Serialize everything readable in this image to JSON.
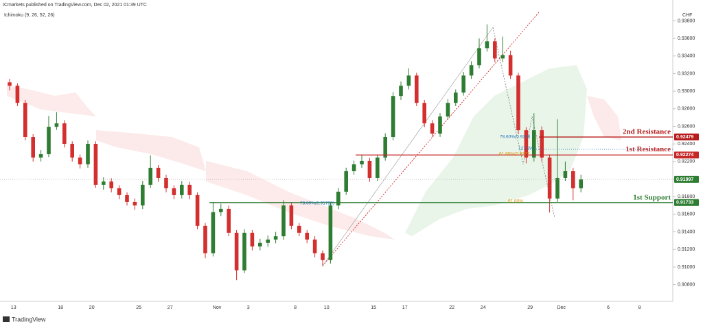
{
  "header": {
    "publisher": "ICmarkets published on TradingView.com, Dec 02, 2021 01:39 UTC",
    "indicator": "Ichimoku (9, 26, 52, 26)",
    "currency": "CHF",
    "brand": "TradingView"
  },
  "chart_data": {
    "type": "candlestick",
    "up_color": "#2e7d32",
    "down_color": "#d32f2f",
    "categories": [
      "13",
      null,
      null,
      null,
      null,
      null,
      "18",
      null,
      null,
      null,
      "20",
      null,
      null,
      null,
      null,
      null,
      "25",
      null,
      null,
      null,
      "27",
      null,
      null,
      null,
      null,
      null,
      "Nov",
      null,
      null,
      null,
      "3",
      null,
      null,
      null,
      null,
      null,
      "8",
      null,
      null,
      null,
      "10",
      null,
      null,
      null,
      null,
      null,
      "15",
      null,
      null,
      null,
      "17",
      null,
      null,
      null,
      null,
      null,
      "22",
      null,
      null,
      null,
      "24",
      null,
      null,
      null,
      null,
      null,
      "29",
      null,
      null,
      null,
      "Dec",
      null,
      null,
      null,
      null,
      null,
      "6",
      null,
      null,
      null,
      "8",
      null,
      null,
      null
    ],
    "ohlc": [
      [
        0.931,
        0.9314,
        0.9301,
        0.93062
      ],
      [
        0.93062,
        0.9309,
        0.9283,
        0.92867
      ],
      [
        0.92867,
        0.929,
        0.9244,
        0.92479
      ],
      [
        0.92479,
        0.9251,
        0.922,
        0.92245
      ],
      [
        0.92245,
        0.9233,
        0.922,
        0.92284
      ],
      [
        0.92284,
        0.9272,
        0.9225,
        0.92595
      ],
      [
        0.92595,
        0.9276,
        0.9256,
        0.92634
      ],
      [
        0.92634,
        0.9267,
        0.9236,
        0.92401
      ],
      [
        0.92401,
        0.9243,
        0.922,
        0.92245
      ],
      [
        0.92245,
        0.9228,
        0.9212,
        0.92168
      ],
      [
        0.92168,
        0.9244,
        0.9213,
        0.92401
      ],
      [
        0.92401,
        0.9243,
        0.919,
        0.91935
      ],
      [
        0.91935,
        0.9202,
        0.9188,
        0.91973
      ],
      [
        0.91973,
        0.9201,
        0.9185,
        0.91896
      ],
      [
        0.91896,
        0.9193,
        0.9177,
        0.91818
      ],
      [
        0.91818,
        0.9185,
        0.917,
        0.9174
      ],
      [
        0.9174,
        0.9178,
        0.9165,
        0.91701
      ],
      [
        0.91701,
        0.9198,
        0.9166,
        0.91935
      ],
      [
        0.91935,
        0.9227,
        0.919,
        0.92129
      ],
      [
        0.92129,
        0.9216,
        0.9197,
        0.92012
      ],
      [
        0.92012,
        0.9205,
        0.9185,
        0.91896
      ],
      [
        0.91896,
        0.9193,
        0.9177,
        0.91818
      ],
      [
        0.91818,
        0.9198,
        0.9178,
        0.91935
      ],
      [
        0.91935,
        0.9197,
        0.9177,
        0.91818
      ],
      [
        0.91818,
        0.9185,
        0.9143,
        0.91468
      ],
      [
        0.91468,
        0.915,
        0.911,
        0.91157
      ],
      [
        0.91157,
        0.9174,
        0.9112,
        0.91624
      ],
      [
        0.91624,
        0.9172,
        0.9158,
        0.91662
      ],
      [
        0.91662,
        0.917,
        0.9135,
        0.9139
      ],
      [
        0.9139,
        0.9142,
        0.9085,
        0.90963
      ],
      [
        0.90963,
        0.9143,
        0.9093,
        0.9139
      ],
      [
        0.9139,
        0.9142,
        0.9119,
        0.91235
      ],
      [
        0.91235,
        0.9132,
        0.9119,
        0.91274
      ],
      [
        0.91274,
        0.9136,
        0.9123,
        0.91313
      ],
      [
        0.91313,
        0.914,
        0.9127,
        0.9135
      ],
      [
        0.9135,
        0.9176,
        0.9131,
        0.91701
      ],
      [
        0.91701,
        0.9173,
        0.9143,
        0.91468
      ],
      [
        0.91468,
        0.915,
        0.9135,
        0.9139
      ],
      [
        0.9139,
        0.9142,
        0.9127,
        0.91313
      ],
      [
        0.91313,
        0.9135,
        0.9111,
        0.91157
      ],
      [
        0.91157,
        0.9119,
        0.9101,
        0.91079
      ],
      [
        0.91079,
        0.9174,
        0.9104,
        0.91701
      ],
      [
        0.91701,
        0.919,
        0.9166,
        0.91857
      ],
      [
        0.91857,
        0.9213,
        0.9182,
        0.9209
      ],
      [
        0.9209,
        0.9221,
        0.9205,
        0.92168
      ],
      [
        0.92168,
        0.9228,
        0.9213,
        0.92207
      ],
      [
        0.92207,
        0.9224,
        0.9197,
        0.92012
      ],
      [
        0.92012,
        0.9228,
        0.9198,
        0.92245
      ],
      [
        0.92245,
        0.9252,
        0.9221,
        0.92479
      ],
      [
        0.92479,
        0.9299,
        0.9244,
        0.92945
      ],
      [
        0.92945,
        0.9311,
        0.929,
        0.93062
      ],
      [
        0.93062,
        0.9326,
        0.9302,
        0.93178
      ],
      [
        0.93178,
        0.9321,
        0.9283,
        0.92867
      ],
      [
        0.92867,
        0.929,
        0.9259,
        0.92634
      ],
      [
        0.92634,
        0.9267,
        0.9248,
        0.92517
      ],
      [
        0.92517,
        0.9275,
        0.9248,
        0.92712
      ],
      [
        0.92712,
        0.9291,
        0.9268,
        0.92867
      ],
      [
        0.92867,
        0.9302,
        0.9283,
        0.92984
      ],
      [
        0.92984,
        0.9322,
        0.9295,
        0.93178
      ],
      [
        0.93178,
        0.9334,
        0.9314,
        0.93295
      ],
      [
        0.93295,
        0.936,
        0.9326,
        0.93489
      ],
      [
        0.93489,
        0.9376,
        0.9345,
        0.93567
      ],
      [
        0.93567,
        0.936,
        0.9333,
        0.93372
      ],
      [
        0.93372,
        0.9362,
        0.9333,
        0.93411
      ],
      [
        0.93411,
        0.9346,
        0.9314,
        0.93178
      ],
      [
        0.93178,
        0.9321,
        0.9251,
        0.92556
      ],
      [
        0.92556,
        0.9259,
        0.9218,
        0.92245
      ],
      [
        0.92245,
        0.9275,
        0.922,
        0.92556
      ],
      [
        0.92556,
        0.926,
        0.922,
        0.92245
      ],
      [
        0.92245,
        0.9228,
        0.9162,
        0.91779
      ],
      [
        0.91779,
        0.9268,
        0.9174,
        0.92012
      ],
      [
        0.92012,
        0.922,
        0.9198,
        0.9209
      ],
      [
        0.9209,
        0.9213,
        0.9176,
        0.91896
      ],
      [
        0.91896,
        0.9205,
        0.9185,
        0.91997
      ],
      null,
      null,
      null,
      null,
      null,
      null,
      null,
      null,
      null,
      null
    ],
    "ylim": [
      0.9061,
      0.9392
    ],
    "yticks": [
      {
        "value": 0.938,
        "label": "0.93800"
      },
      {
        "value": 0.936,
        "label": "0.93600"
      },
      {
        "value": 0.934,
        "label": "0.93400"
      },
      {
        "value": 0.932,
        "label": "0.93200"
      },
      {
        "value": 0.93,
        "label": "0.93000"
      },
      {
        "value": 0.928,
        "label": "0.92800"
      },
      {
        "value": 0.926,
        "label": "0.92600"
      },
      {
        "value": 0.924,
        "label": "0.92400"
      },
      {
        "value": 0.922,
        "label": "0.92200"
      },
      {
        "value": 0.92,
        "label": "0.92000"
      },
      {
        "value": 0.918,
        "label": "0.91800"
      },
      {
        "value": 0.916,
        "label": "0.91600"
      },
      {
        "value": 0.914,
        "label": "0.91400"
      },
      {
        "value": 0.912,
        "label": "0.91200"
      },
      {
        "value": 0.91,
        "label": "0.91000"
      },
      {
        "value": 0.908,
        "label": "0.90800"
      }
    ],
    "levels": [
      {
        "name": "2nd Resistance",
        "value": 0.92479,
        "label": "0.92479",
        "color": "#b71c1c"
      },
      {
        "name": "1st Resistance",
        "value": 0.92274,
        "label": "0.92274",
        "color": "#c62828"
      },
      {
        "value": 0.91997,
        "label": "0.91997",
        "color": "#2e7d32"
      },
      {
        "name": "1st Support",
        "value": 0.91733,
        "label": "0.91733",
        "color": "#2e7d32"
      }
    ],
    "fib_labels": [
      {
        "text": "78.60%(0.9248",
        "color": "#1e6fb5"
      },
      {
        "text": "127.2%",
        "color": "#1e6fb5"
      },
      {
        "text": "61.80%(0.9227",
        "color": "#d89000"
      },
      {
        "text": "78.60%(0.91733)",
        "color": "#1e6fb5"
      },
      {
        "text": "61.80%",
        "color": "#d89000"
      }
    ]
  }
}
